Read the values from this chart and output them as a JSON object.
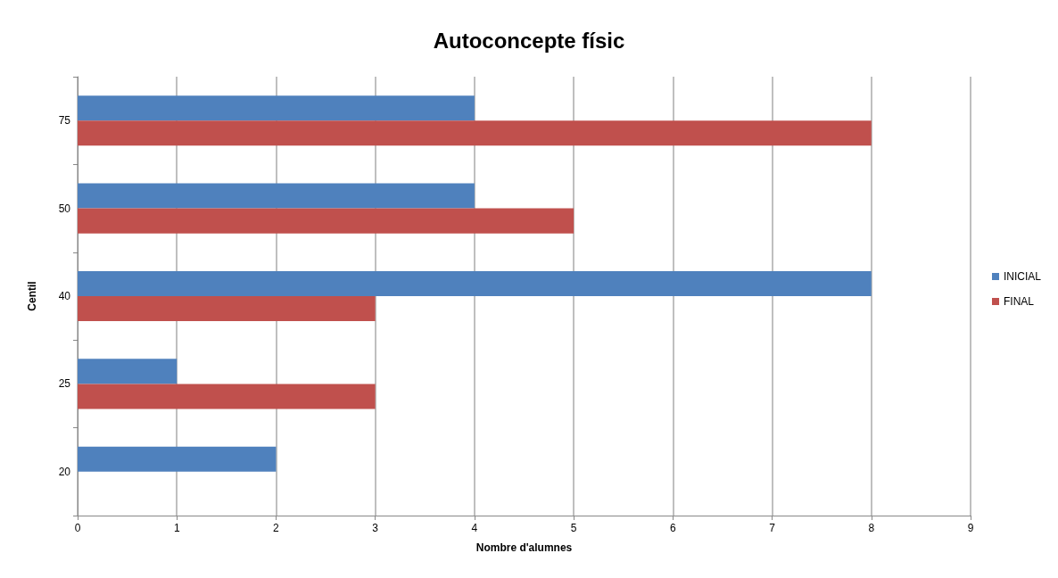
{
  "chart_data": {
    "type": "bar",
    "orientation": "horizontal",
    "title": "Autoconcepte físic",
    "xlabel": "Nombre d'alumnes",
    "ylabel": "Centil",
    "categories": [
      "75",
      "50",
      "40",
      "25",
      "20"
    ],
    "series": [
      {
        "name": "INICIAL",
        "color": "#4f81bd",
        "values": [
          4,
          4,
          8,
          1,
          2
        ]
      },
      {
        "name": "FINAL",
        "color": "#c0504d",
        "values": [
          8,
          5,
          3,
          3,
          0
        ]
      }
    ],
    "xlim": [
      0,
      9
    ],
    "xticks": [
      0,
      1,
      2,
      3,
      4,
      5,
      6,
      7,
      8,
      9
    ],
    "grid": "x",
    "legend": "right"
  }
}
